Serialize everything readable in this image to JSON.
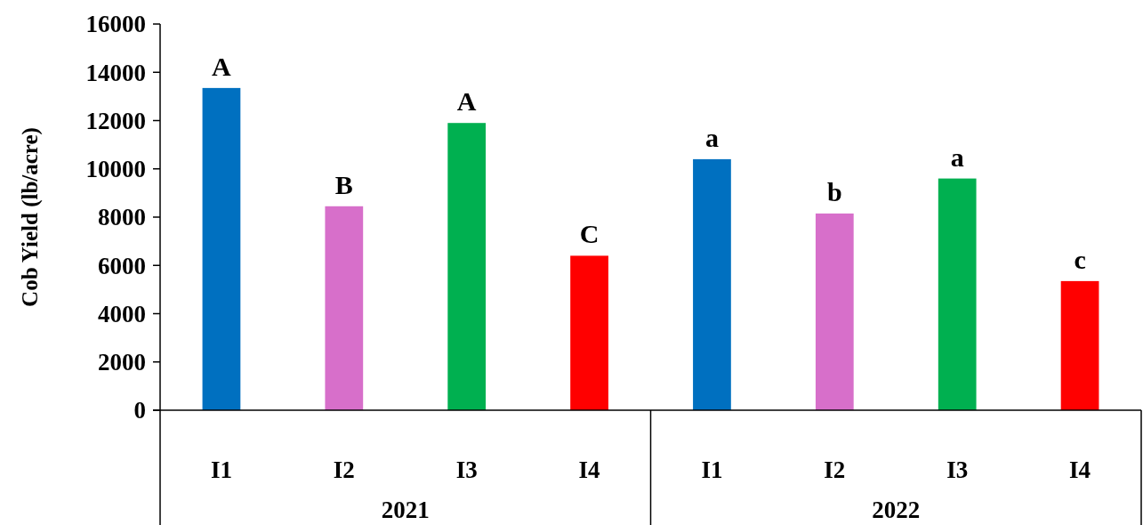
{
  "chart_data": {
    "type": "bar",
    "ylabel": "Cob Yield (lb/acre)",
    "categories": [
      "I1",
      "I2",
      "I3",
      "I4",
      "I1",
      "I2",
      "I3",
      "I4"
    ],
    "values": [
      13350,
      8450,
      11900,
      6400,
      10400,
      8150,
      9600,
      5350
    ],
    "colors": [
      "#0070c0",
      "#d76fca",
      "#00b050",
      "#ff0000",
      "#0070c0",
      "#d76fca",
      "#00b050",
      "#ff0000"
    ],
    "value_labels": [
      "A",
      "B",
      "A",
      "C",
      "a",
      "b",
      "a",
      "c"
    ],
    "annotations": [
      "2021",
      "2022"
    ],
    "ylim": [
      0,
      16000
    ],
    "yticks": [
      0,
      2000,
      4000,
      6000,
      8000,
      10000,
      12000,
      14000,
      16000
    ],
    "grid": false
  }
}
